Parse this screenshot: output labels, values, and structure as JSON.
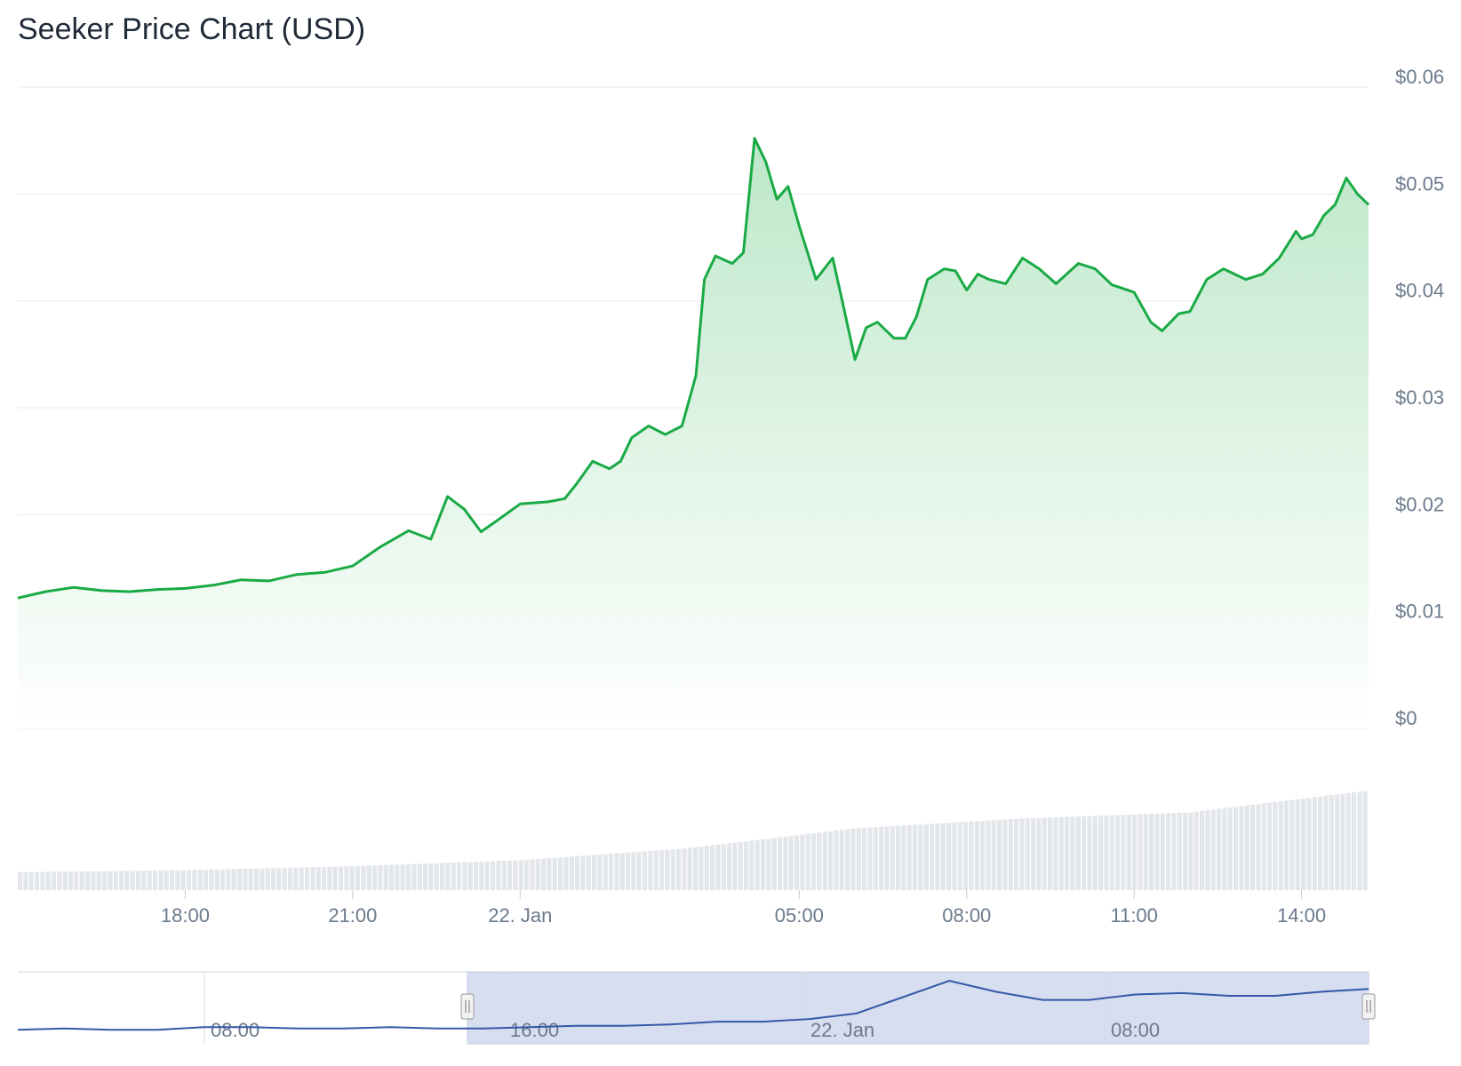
{
  "title": "Seeker Price Chart (USD)",
  "colors": {
    "price_line": "#1aaa45",
    "area_top": "#b9e6c6",
    "volume_bar": "#e3e6ea",
    "grid": "#e6e9ed",
    "navigator_line": "#3558a8",
    "navigator_mask": "#d3daee"
  },
  "chart_data": [
    {
      "type": "area",
      "title": "Seeker Price Chart (USD)",
      "y_axis": {
        "ticks": [
          "$0",
          "$0.01",
          "$0.02",
          "$0.03",
          "$0.04",
          "$0.05",
          "$0.06"
        ],
        "tick_values": [
          0,
          0.01,
          0.02,
          0.03,
          0.04,
          0.05,
          0.06
        ],
        "ylim": [
          0,
          0.06
        ],
        "position": "right"
      },
      "x_axis": {
        "ticks": [
          "18:00",
          "21:00",
          "22. Jan",
          "05:00",
          "08:00",
          "11:00",
          "14:00"
        ],
        "tick_hours": [
          18,
          21,
          24,
          29,
          32,
          35,
          38
        ],
        "range_hours": [
          15.0,
          39.2
        ],
        "unit": "hours since 21 Jan 00:00"
      },
      "grid": true,
      "series": [
        {
          "name": "Price",
          "x": [
            15.0,
            15.5,
            16.0,
            16.5,
            17.0,
            17.5,
            18.0,
            18.5,
            19.0,
            19.5,
            20.0,
            20.5,
            21.0,
            21.5,
            22.0,
            22.4,
            22.7,
            23.0,
            23.3,
            23.6,
            24.0,
            24.5,
            24.8,
            25.0,
            25.3,
            25.6,
            25.8,
            26.0,
            26.3,
            26.6,
            26.9,
            27.15,
            27.3,
            27.5,
            27.8,
            28.0,
            28.2,
            28.4,
            28.6,
            28.8,
            29.0,
            29.3,
            29.6,
            29.8,
            30.0,
            30.2,
            30.4,
            30.7,
            30.9,
            31.1,
            31.3,
            31.6,
            31.8,
            32.0,
            32.2,
            32.4,
            32.7,
            33.0,
            33.3,
            33.6,
            34.0,
            34.3,
            34.6,
            35.0,
            35.3,
            35.5,
            35.8,
            36.0,
            36.3,
            36.6,
            37.0,
            37.3,
            37.6,
            37.9,
            38.0,
            38.2,
            38.4,
            38.6,
            38.8,
            39.0,
            39.2
          ],
          "values": [
            0.0122,
            0.0128,
            0.0132,
            0.0129,
            0.0128,
            0.013,
            0.0131,
            0.0134,
            0.0139,
            0.0138,
            0.0144,
            0.0146,
            0.0152,
            0.017,
            0.0185,
            0.0177,
            0.0217,
            0.0205,
            0.0184,
            0.0195,
            0.021,
            0.0212,
            0.0215,
            0.0228,
            0.025,
            0.0243,
            0.025,
            0.0272,
            0.0283,
            0.0275,
            0.0283,
            0.033,
            0.042,
            0.0442,
            0.0435,
            0.0445,
            0.0552,
            0.053,
            0.0495,
            0.0507,
            0.047,
            0.042,
            0.044,
            0.0393,
            0.0345,
            0.0375,
            0.038,
            0.0365,
            0.0365,
            0.0385,
            0.042,
            0.043,
            0.0428,
            0.041,
            0.0425,
            0.042,
            0.0416,
            0.044,
            0.043,
            0.0416,
            0.0435,
            0.043,
            0.0415,
            0.0408,
            0.038,
            0.0372,
            0.0388,
            0.039,
            0.042,
            0.043,
            0.042,
            0.0425,
            0.044,
            0.0465,
            0.0458,
            0.0462,
            0.048,
            0.049,
            0.0515,
            0.05,
            0.049
          ]
        },
        {
          "name": "Volume",
          "type": "bar",
          "x": [
            15.0,
            18.0,
            21.0,
            24.0,
            27.0,
            30.0,
            33.0,
            36.0,
            39.2
          ],
          "values": [
            0.18,
            0.2,
            0.24,
            0.3,
            0.42,
            0.62,
            0.72,
            0.78,
            1.0
          ],
          "unit": "relative"
        }
      ]
    },
    {
      "type": "line",
      "role": "navigator",
      "x_axis": {
        "ticks": [
          "08:00",
          "16:00",
          "22. Jan",
          "08:00"
        ]
      },
      "selected_range": "from ~15:00 (21 Jan) to latest",
      "series": [
        {
          "name": "Price",
          "values": [
            0.01,
            0.011,
            0.01,
            0.01,
            0.012,
            0.012,
            0.011,
            0.011,
            0.012,
            0.011,
            0.011,
            0.012,
            0.013,
            0.013,
            0.014,
            0.016,
            0.016,
            0.018,
            0.022,
            0.034,
            0.046,
            0.038,
            0.032,
            0.032,
            0.036,
            0.037,
            0.035,
            0.035,
            0.038,
            0.04
          ]
        }
      ]
    }
  ]
}
